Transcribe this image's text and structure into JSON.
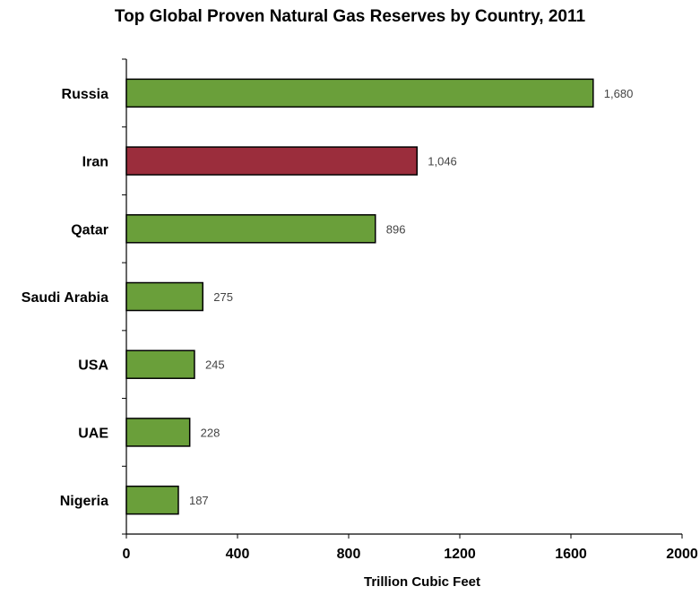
{
  "chart_data": {
    "type": "bar",
    "orientation": "horizontal",
    "title": "Top Global Proven Natural Gas Reserves by Country, 2011",
    "xlabel": "Trillion Cubic Feet",
    "ylabel": "",
    "categories": [
      "Russia",
      "Iran",
      "Qatar",
      "Saudi Arabia",
      "USA",
      "UAE",
      "Nigeria"
    ],
    "values": [
      1680,
      1046,
      896,
      275,
      245,
      228,
      187
    ],
    "value_labels": [
      "1,680",
      "1,046",
      "896",
      "275",
      "245",
      "228",
      "187"
    ],
    "xlim": [
      0,
      2000
    ],
    "xticks": [
      0,
      400,
      800,
      1200,
      1600,
      2000
    ],
    "grid": false,
    "legend": "none",
    "colors": [
      "#6a9f3a",
      "#9b2d3c",
      "#6a9f3a",
      "#6a9f3a",
      "#6a9f3a",
      "#6a9f3a",
      "#6a9f3a"
    ]
  }
}
